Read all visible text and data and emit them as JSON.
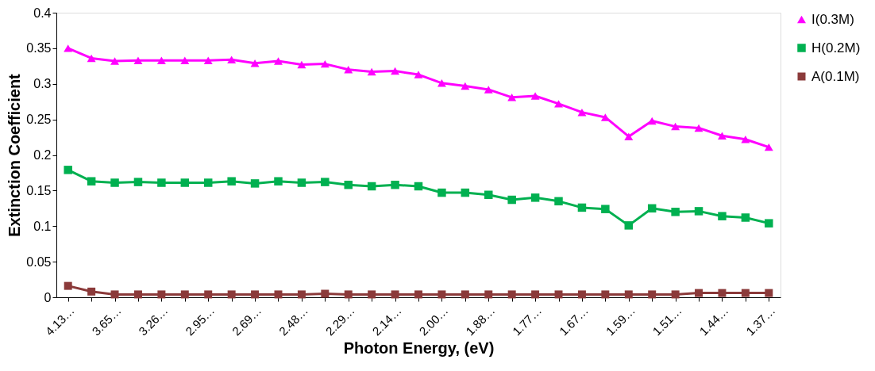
{
  "chart_data": {
    "type": "line",
    "xlabel": "Photon Energy, (eV)",
    "ylabel": "Extinction Coefficient",
    "categories": [
      "4.13…",
      null,
      "3.65…",
      null,
      "3.26…",
      null,
      "2.95…",
      null,
      "2.69…",
      null,
      "2.48…",
      null,
      "2.29…",
      null,
      "2.14…",
      null,
      "2.00…",
      null,
      "1.88…",
      null,
      "1.77…",
      null,
      "1.67…",
      null,
      "1.59…",
      null,
      "1.51…",
      null,
      "1.44…",
      null,
      "1.37…"
    ],
    "ylim": [
      0,
      0.4
    ],
    "yticks": [
      0,
      0.05,
      0.1,
      0.15,
      0.2,
      0.25,
      0.3,
      0.35,
      0.4
    ],
    "grid": false,
    "legend": "top right",
    "series": [
      {
        "name": "I(0.3M)",
        "color": "#ff00ff",
        "marker": "triangle",
        "values": [
          0.35,
          0.336,
          0.332,
          0.333,
          0.333,
          0.333,
          0.333,
          0.334,
          0.329,
          0.332,
          0.327,
          0.328,
          0.32,
          0.317,
          0.318,
          0.313,
          0.301,
          0.297,
          0.292,
          0.281,
          0.283,
          0.272,
          0.26,
          0.253,
          0.226,
          0.248,
          0.24,
          0.238,
          0.227,
          0.222,
          0.211
        ]
      },
      {
        "name": "H(0.2M)",
        "color": "#00b050",
        "marker": "square",
        "values": [
          0.179,
          0.163,
          0.161,
          0.162,
          0.161,
          0.161,
          0.161,
          0.163,
          0.16,
          0.163,
          0.161,
          0.162,
          0.158,
          0.156,
          0.158,
          0.156,
          0.147,
          0.147,
          0.144,
          0.137,
          0.14,
          0.135,
          0.126,
          0.124,
          0.101,
          0.125,
          0.12,
          0.121,
          0.114,
          0.112,
          0.104
        ]
      },
      {
        "name": "A(0.1M)",
        "color": "#8b3a3a",
        "marker": "square",
        "values": [
          0.016,
          0.008,
          0.004,
          0.004,
          0.004,
          0.004,
          0.004,
          0.004,
          0.004,
          0.004,
          0.004,
          0.005,
          0.004,
          0.004,
          0.004,
          0.004,
          0.004,
          0.004,
          0.004,
          0.004,
          0.004,
          0.004,
          0.004,
          0.004,
          0.004,
          0.004,
          0.004,
          0.006,
          0.006,
          0.006,
          0.006
        ]
      }
    ]
  }
}
